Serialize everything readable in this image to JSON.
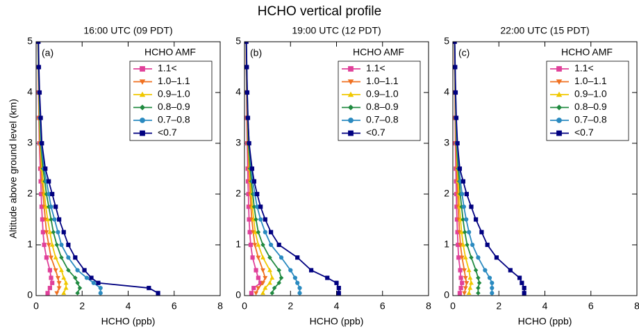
{
  "title": "HCHO vertical profile",
  "chart_data": [
    {
      "type": "line",
      "title": "16:00 UTC (09 PDT)",
      "panel_label": "(a)",
      "legend_title": "HCHO AMF",
      "xlabel": "HCHO (ppb)",
      "ylabel": "Altitude above ground level (km)",
      "xlim": [
        0,
        8
      ],
      "xticks": [
        0,
        2,
        4,
        6,
        8
      ],
      "ylim": [
        0,
        5
      ],
      "yticks": [
        0,
        1,
        2,
        3,
        4,
        5
      ],
      "y": [
        0.05,
        0.15,
        0.25,
        0.35,
        0.5,
        0.75,
        1.0,
        1.25,
        1.5,
        1.75,
        2.0,
        2.25,
        2.5,
        3.0,
        3.5,
        4.0,
        4.5,
        5.0
      ],
      "series": [
        {
          "name": "1.1<",
          "color": "#e0409a",
          "marker": "square",
          "values": [
            0.5,
            0.6,
            0.7,
            0.65,
            0.6,
            0.45,
            0.35,
            0.3,
            0.27,
            0.24,
            0.22,
            0.2,
            0.18,
            0.14,
            0.12,
            0.1,
            0.09,
            0.08
          ]
        },
        {
          "name": "1.0–1.1",
          "color": "#f07020",
          "marker": "triangle-down",
          "values": [
            0.9,
            1.0,
            1.0,
            0.95,
            0.85,
            0.65,
            0.55,
            0.45,
            0.4,
            0.35,
            0.3,
            0.26,
            0.22,
            0.16,
            0.13,
            0.11,
            0.09,
            0.08
          ]
        },
        {
          "name": "0.9–1.0",
          "color": "#f0c800",
          "marker": "triangle-up",
          "values": [
            1.2,
            1.3,
            1.3,
            1.2,
            1.1,
            0.85,
            0.7,
            0.6,
            0.5,
            0.42,
            0.36,
            0.3,
            0.25,
            0.18,
            0.14,
            0.12,
            0.1,
            0.08
          ]
        },
        {
          "name": "0.8–0.9",
          "color": "#208a40",
          "marker": "diamond",
          "values": [
            1.8,
            1.9,
            1.8,
            1.7,
            1.4,
            1.1,
            0.9,
            0.75,
            0.65,
            0.55,
            0.45,
            0.38,
            0.3,
            0.2,
            0.16,
            0.13,
            0.1,
            0.09
          ]
        },
        {
          "name": "0.7–0.8",
          "color": "#2a8ac0",
          "marker": "circle",
          "values": [
            2.8,
            2.8,
            2.5,
            2.2,
            1.8,
            1.4,
            1.1,
            0.95,
            0.8,
            0.65,
            0.55,
            0.45,
            0.35,
            0.22,
            0.18,
            0.14,
            0.11,
            0.1
          ]
        },
        {
          "name": "<0.7",
          "color": "#000080",
          "marker": "square",
          "values": [
            5.3,
            4.9,
            2.7,
            2.4,
            2.1,
            1.7,
            1.4,
            1.2,
            1.0,
            0.85,
            0.7,
            0.55,
            0.4,
            0.25,
            0.2,
            0.15,
            0.12,
            0.1
          ]
        }
      ]
    },
    {
      "type": "line",
      "title": "19:00 UTC (12 PDT)",
      "panel_label": "(b)",
      "legend_title": "HCHO AMF",
      "xlabel": "HCHO (ppb)",
      "xlim": [
        0,
        8
      ],
      "xticks": [
        0,
        2,
        4,
        6,
        8
      ],
      "ylim": [
        0,
        5
      ],
      "yticks": [
        0,
        1,
        2,
        3,
        4,
        5
      ],
      "y": [
        0.05,
        0.15,
        0.25,
        0.35,
        0.5,
        0.75,
        1.0,
        1.25,
        1.5,
        1.75,
        2.0,
        2.25,
        2.5,
        3.0,
        3.5,
        4.0,
        4.5,
        5.0
      ],
      "series": [
        {
          "name": "1.1<",
          "color": "#e0409a",
          "marker": "square",
          "values": [
            0.3,
            0.4,
            0.7,
            0.6,
            0.5,
            0.35,
            0.27,
            0.23,
            0.2,
            0.18,
            0.17,
            0.15,
            0.14,
            0.12,
            0.1,
            0.09,
            0.08,
            0.07
          ]
        },
        {
          "name": "1.0–1.1",
          "color": "#f07020",
          "marker": "triangle-down",
          "values": [
            0.5,
            0.6,
            0.8,
            0.9,
            0.8,
            0.6,
            0.45,
            0.38,
            0.32,
            0.28,
            0.25,
            0.22,
            0.19,
            0.14,
            0.12,
            0.1,
            0.08,
            0.07
          ]
        },
        {
          "name": "0.9–1.0",
          "color": "#f0c800",
          "marker": "triangle-up",
          "values": [
            0.8,
            0.9,
            1.1,
            1.2,
            1.1,
            0.8,
            0.6,
            0.47,
            0.4,
            0.34,
            0.3,
            0.26,
            0.22,
            0.16,
            0.13,
            0.1,
            0.09,
            0.08
          ]
        },
        {
          "name": "0.8–0.9",
          "color": "#208a40",
          "marker": "diamond",
          "values": [
            1.2,
            1.3,
            1.5,
            1.6,
            1.5,
            1.1,
            0.8,
            0.6,
            0.5,
            0.42,
            0.36,
            0.3,
            0.25,
            0.17,
            0.14,
            0.11,
            0.09,
            0.08
          ]
        },
        {
          "name": "0.7–0.8",
          "color": "#2a8ac0",
          "marker": "circle",
          "values": [
            2.4,
            2.4,
            2.3,
            2.2,
            2.0,
            1.6,
            1.15,
            0.9,
            0.7,
            0.55,
            0.45,
            0.36,
            0.3,
            0.2,
            0.15,
            0.12,
            0.1,
            0.08
          ]
        },
        {
          "name": "<0.7",
          "color": "#000080",
          "marker": "square",
          "values": [
            4.1,
            4.1,
            4.0,
            3.6,
            2.9,
            2.3,
            1.5,
            1.15,
            0.9,
            0.7,
            0.55,
            0.42,
            0.33,
            0.2,
            0.15,
            0.12,
            0.1,
            0.08
          ]
        }
      ]
    },
    {
      "type": "line",
      "title": "22:00 UTC (15 PDT)",
      "panel_label": "(c)",
      "legend_title": "HCHO AMF",
      "xlabel": "HCHO (ppb)",
      "xlim": [
        0,
        8
      ],
      "xticks": [
        0,
        2,
        4,
        6,
        8
      ],
      "ylim": [
        0,
        5
      ],
      "yticks": [
        0,
        1,
        2,
        3,
        4,
        5
      ],
      "y": [
        0.05,
        0.15,
        0.25,
        0.35,
        0.5,
        0.75,
        1.0,
        1.25,
        1.5,
        1.75,
        2.0,
        2.25,
        2.5,
        3.0,
        3.5,
        4.0,
        4.5,
        5.0
      ],
      "series": [
        {
          "name": "1.1<",
          "color": "#e0409a",
          "marker": "square",
          "values": [
            0.3,
            0.35,
            0.4,
            0.35,
            0.32,
            0.25,
            0.22,
            0.2,
            0.18,
            0.16,
            0.15,
            0.14,
            0.13,
            0.11,
            0.1,
            0.09,
            0.08,
            0.07
          ]
        },
        {
          "name": "1.0–1.1",
          "color": "#f07020",
          "marker": "triangle-down",
          "values": [
            0.5,
            0.55,
            0.6,
            0.55,
            0.5,
            0.4,
            0.33,
            0.29,
            0.26,
            0.23,
            0.21,
            0.19,
            0.17,
            0.13,
            0.11,
            0.1,
            0.08,
            0.07
          ]
        },
        {
          "name": "0.9–1.0",
          "color": "#f0c800",
          "marker": "triangle-up",
          "values": [
            0.7,
            0.75,
            0.8,
            0.75,
            0.7,
            0.55,
            0.45,
            0.38,
            0.33,
            0.29,
            0.26,
            0.23,
            0.2,
            0.15,
            0.12,
            0.1,
            0.09,
            0.08
          ]
        },
        {
          "name": "0.8–0.9",
          "color": "#208a40",
          "marker": "diamond",
          "values": [
            1.1,
            1.1,
            1.15,
            1.1,
            1.0,
            0.8,
            0.62,
            0.52,
            0.44,
            0.38,
            0.32,
            0.28,
            0.23,
            0.16,
            0.13,
            0.11,
            0.09,
            0.08
          ]
        },
        {
          "name": "0.7–0.8",
          "color": "#2a8ac0",
          "marker": "circle",
          "values": [
            1.7,
            1.7,
            1.7,
            1.6,
            1.4,
            1.1,
            0.85,
            0.7,
            0.58,
            0.48,
            0.4,
            0.33,
            0.27,
            0.18,
            0.14,
            0.12,
            0.1,
            0.08
          ]
        },
        {
          "name": "<0.7",
          "color": "#000080",
          "marker": "square",
          "values": [
            3.1,
            3.1,
            3.0,
            2.9,
            2.5,
            1.9,
            1.5,
            1.25,
            1.0,
            0.8,
            0.6,
            0.45,
            0.3,
            0.2,
            0.15,
            0.12,
            0.1,
            0.08
          ]
        }
      ]
    }
  ]
}
